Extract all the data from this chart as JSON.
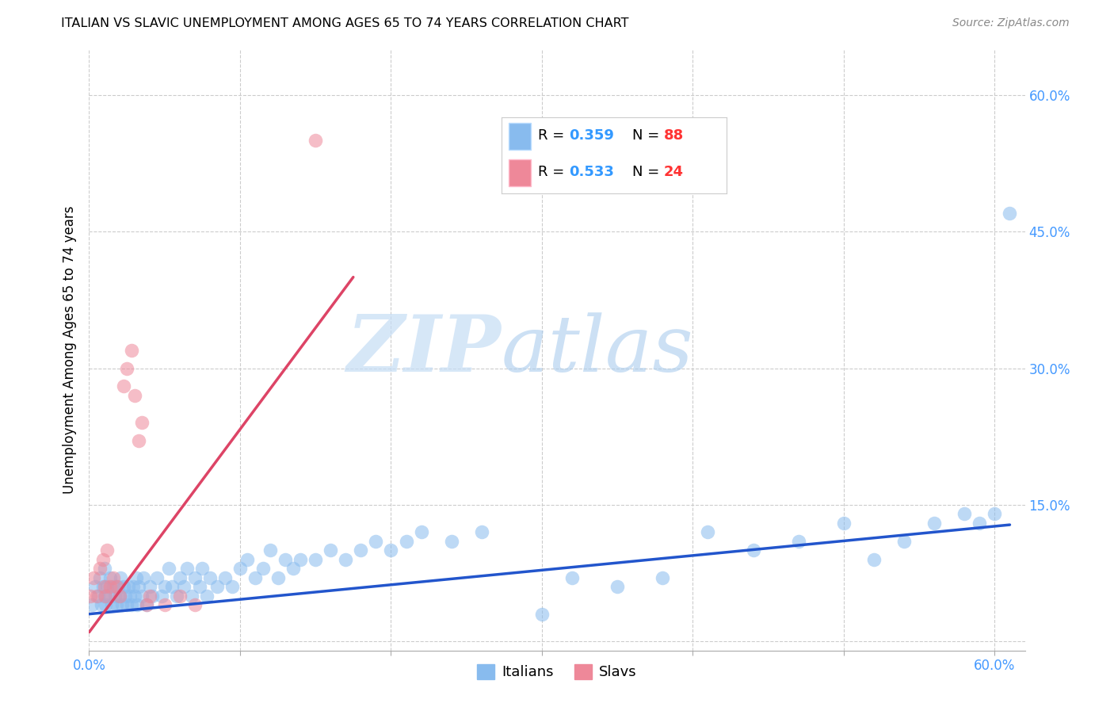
{
  "title": "ITALIAN VS SLAVIC UNEMPLOYMENT AMONG AGES 65 TO 74 YEARS CORRELATION CHART",
  "source": "Source: ZipAtlas.com",
  "ylabel": "Unemployment Among Ages 65 to 74 years",
  "xlim": [
    0.0,
    0.62
  ],
  "ylim": [
    -0.01,
    0.65
  ],
  "xticks": [
    0.0,
    0.6
  ],
  "xticklabels": [
    "0.0%",
    "60.0%"
  ],
  "ytick_positions": [
    0.0,
    0.15,
    0.3,
    0.45,
    0.6
  ],
  "yticklabels_right": [
    "",
    "15.0%",
    "30.0%",
    "45.0%",
    "60.0%"
  ],
  "grid_color": "#cccccc",
  "background_color": "#ffffff",
  "italian_color": "#88bbee",
  "slavic_color": "#ee8899",
  "italian_line_color": "#2255cc",
  "slavic_line_color": "#dd4466",
  "legend_r1": "0.359",
  "legend_n1": "88",
  "legend_r2": "0.533",
  "legend_n2": "24",
  "italian_scatter_x": [
    0.002,
    0.004,
    0.006,
    0.007,
    0.008,
    0.009,
    0.01,
    0.01,
    0.011,
    0.012,
    0.013,
    0.014,
    0.015,
    0.016,
    0.017,
    0.018,
    0.019,
    0.02,
    0.021,
    0.022,
    0.023,
    0.024,
    0.025,
    0.026,
    0.027,
    0.028,
    0.029,
    0.03,
    0.031,
    0.032,
    0.033,
    0.035,
    0.036,
    0.038,
    0.04,
    0.042,
    0.045,
    0.048,
    0.05,
    0.053,
    0.055,
    0.058,
    0.06,
    0.063,
    0.065,
    0.068,
    0.07,
    0.073,
    0.075,
    0.078,
    0.08,
    0.085,
    0.09,
    0.095,
    0.1,
    0.105,
    0.11,
    0.115,
    0.12,
    0.125,
    0.13,
    0.135,
    0.14,
    0.15,
    0.16,
    0.17,
    0.18,
    0.19,
    0.2,
    0.21,
    0.22,
    0.24,
    0.26,
    0.3,
    0.32,
    0.35,
    0.38,
    0.41,
    0.44,
    0.47,
    0.5,
    0.52,
    0.54,
    0.56,
    0.58,
    0.59,
    0.6,
    0.61
  ],
  "italian_scatter_y": [
    0.04,
    0.06,
    0.05,
    0.07,
    0.04,
    0.06,
    0.05,
    0.08,
    0.04,
    0.06,
    0.05,
    0.07,
    0.04,
    0.06,
    0.05,
    0.04,
    0.06,
    0.05,
    0.07,
    0.04,
    0.06,
    0.05,
    0.04,
    0.06,
    0.05,
    0.04,
    0.06,
    0.05,
    0.07,
    0.04,
    0.06,
    0.05,
    0.07,
    0.04,
    0.06,
    0.05,
    0.07,
    0.05,
    0.06,
    0.08,
    0.06,
    0.05,
    0.07,
    0.06,
    0.08,
    0.05,
    0.07,
    0.06,
    0.08,
    0.05,
    0.07,
    0.06,
    0.07,
    0.06,
    0.08,
    0.09,
    0.07,
    0.08,
    0.1,
    0.07,
    0.09,
    0.08,
    0.09,
    0.09,
    0.1,
    0.09,
    0.1,
    0.11,
    0.1,
    0.11,
    0.12,
    0.11,
    0.12,
    0.03,
    0.07,
    0.06,
    0.07,
    0.12,
    0.1,
    0.11,
    0.13,
    0.09,
    0.11,
    0.13,
    0.14,
    0.13,
    0.14,
    0.47
  ],
  "slavic_scatter_x": [
    0.001,
    0.003,
    0.005,
    0.007,
    0.009,
    0.01,
    0.011,
    0.012,
    0.014,
    0.016,
    0.018,
    0.02,
    0.023,
    0.025,
    0.028,
    0.03,
    0.033,
    0.035,
    0.038,
    0.04,
    0.05,
    0.06,
    0.07,
    0.15
  ],
  "slavic_scatter_y": [
    0.05,
    0.07,
    0.05,
    0.08,
    0.09,
    0.06,
    0.05,
    0.1,
    0.06,
    0.07,
    0.06,
    0.05,
    0.28,
    0.3,
    0.32,
    0.27,
    0.22,
    0.24,
    0.04,
    0.05,
    0.04,
    0.05,
    0.04,
    0.55
  ],
  "italian_trend_x": [
    0.0,
    0.61
  ],
  "italian_trend_y": [
    0.03,
    0.128
  ],
  "slavic_trend_x": [
    0.0,
    0.175
  ],
  "slavic_trend_y": [
    0.01,
    0.4
  ]
}
